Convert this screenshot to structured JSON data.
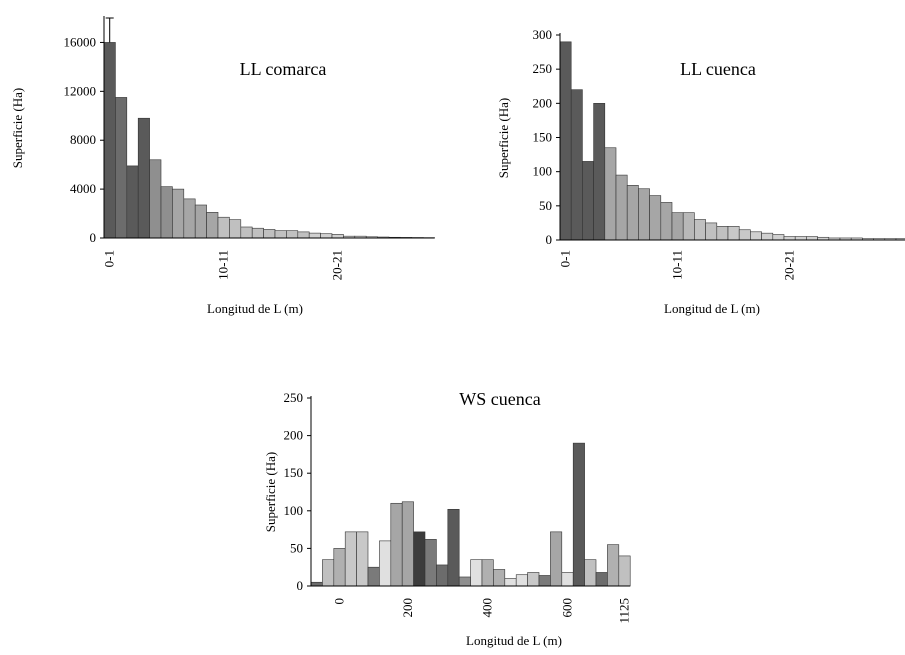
{
  "chart_data": [
    {
      "type": "bar",
      "title": "LL comarca",
      "xlabel": "Longitud de L (m)",
      "ylabel": "Superficie (Ha)",
      "ylim": [
        0,
        18000
      ],
      "yticks": [
        0,
        4000,
        8000,
        12000,
        16000
      ],
      "xtick_labels": [
        {
          "index": 0,
          "label": "0-1"
        },
        {
          "index": 10,
          "label": "10-11"
        },
        {
          "index": 20,
          "label": "20-21"
        }
      ],
      "values": [
        16000,
        11500,
        5900,
        9800,
        6400,
        4200,
        4000,
        3200,
        2700,
        2100,
        1700,
        1500,
        900,
        800,
        700,
        600,
        600,
        500,
        400,
        350,
        300,
        150,
        150,
        100,
        80,
        60,
        50,
        40,
        30
      ],
      "error_bar": {
        "index": 0,
        "upper": 18000
      },
      "colors": [
        "#5a5a5a",
        "#6c6c6c",
        "#5a5a5a",
        "#5a5a5a",
        "#8f8f8f",
        "#8f8f8f",
        "#a6a6a6",
        "#a6a6a6",
        "#a6a6a6",
        "#a6a6a6",
        "#c0c0c0",
        "#c0c0c0",
        "#c0c0c0",
        "#c0c0c0",
        "#c0c0c0",
        "#c0c0c0",
        "#c0c0c0",
        "#c0c0c0",
        "#d0d0d0",
        "#d0d0d0",
        "#d0d0d0",
        "#d0d0d0",
        "#d0d0d0",
        "#d0d0d0",
        "#d0d0d0",
        "#d0d0d0",
        "#d0d0d0",
        "#d0d0d0",
        "#d0d0d0"
      ]
    },
    {
      "type": "bar",
      "title": "LL cuenca",
      "xlabel": "Longitud de L (m)",
      "ylabel": "Superficie (Ha)",
      "ylim": [
        0,
        300
      ],
      "yticks": [
        0,
        50,
        100,
        150,
        200,
        250,
        300
      ],
      "xtick_labels": [
        {
          "index": 0,
          "label": "0-1"
        },
        {
          "index": 10,
          "label": "10-11"
        },
        {
          "index": 20,
          "label": "20-21"
        }
      ],
      "values": [
        290,
        220,
        115,
        200,
        135,
        95,
        80,
        75,
        65,
        55,
        40,
        40,
        30,
        25,
        20,
        20,
        15,
        12,
        10,
        8,
        5,
        5,
        5,
        4,
        3,
        3,
        3,
        2,
        2,
        2,
        2,
        2
      ],
      "colors": [
        "#5a5a5a",
        "#5a5a5a",
        "#5a5a5a",
        "#5a5a5a",
        "#a6a6a6",
        "#a6a6a6",
        "#a6a6a6",
        "#a6a6a6",
        "#a6a6a6",
        "#a6a6a6",
        "#a6a6a6",
        "#b8b8b8",
        "#c0c0c0",
        "#c0c0c0",
        "#c0c0c0",
        "#c8c8c8",
        "#c8c8c8",
        "#d0d0d0",
        "#d0d0d0",
        "#d0d0d0",
        "#d0d0d0",
        "#d0d0d0",
        "#d0d0d0",
        "#d0d0d0",
        "#d0d0d0",
        "#d0d0d0",
        "#d0d0d0",
        "#d0d0d0",
        "#d0d0d0",
        "#d0d0d0",
        "#d0d0d0",
        "#d0d0d0"
      ]
    },
    {
      "type": "bar",
      "title": "WS cuenca",
      "xlabel": "Longitud de L (m)",
      "ylabel": "Superficie (Ha)",
      "ylim": [
        0,
        250
      ],
      "yticks": [
        0,
        50,
        100,
        150,
        200,
        250
      ],
      "xtick_labels": [
        {
          "index": 2,
          "label": "0"
        },
        {
          "index": 8,
          "label": "200"
        },
        {
          "index": 15,
          "label": "400"
        },
        {
          "index": 22,
          "label": "600"
        },
        {
          "index": 27,
          "label": "1125"
        }
      ],
      "values": [
        5,
        35,
        50,
        72,
        72,
        25,
        60,
        110,
        112,
        72,
        62,
        28,
        102,
        12,
        35,
        35,
        22,
        10,
        15,
        18,
        14,
        72,
        18,
        190,
        35,
        18,
        55,
        40
      ],
      "colors": [
        "#6c6c6c",
        "#c0c0c0",
        "#b0b0b0",
        "#c8c8c8",
        "#c8c8c8",
        "#7a7a7a",
        "#e0e0e0",
        "#a6a6a6",
        "#a6a6a6",
        "#3c3c3c",
        "#7a7a7a",
        "#6c6c6c",
        "#5a5a5a",
        "#8f8f8f",
        "#e0e0e0",
        "#b0b0b0",
        "#b0b0b0",
        "#e0e0e0",
        "#e0e0e0",
        "#c8c8c8",
        "#7a7a7a",
        "#a6a6a6",
        "#e0e0e0",
        "#5a5a5a",
        "#c0c0c0",
        "#6c6c6c",
        "#b0b0b0",
        "#c0c0c0"
      ]
    }
  ]
}
